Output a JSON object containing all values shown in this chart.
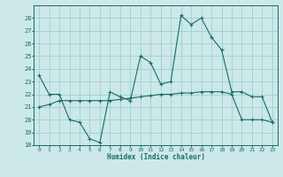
{
  "title": "",
  "xlabel": "Humidex (Indice chaleur)",
  "xlim": [
    -0.5,
    23.5
  ],
  "ylim": [
    18,
    29
  ],
  "yticks": [
    18,
    19,
    20,
    21,
    22,
    23,
    24,
    25,
    26,
    27,
    28
  ],
  "xticks": [
    0,
    1,
    2,
    3,
    4,
    5,
    6,
    7,
    8,
    9,
    10,
    11,
    12,
    13,
    14,
    15,
    16,
    17,
    18,
    19,
    20,
    21,
    22,
    23
  ],
  "bg_color": "#cce8e8",
  "line_color": "#1a6b6b",
  "grid_color": "#99cccc",
  "line1_x": [
    0,
    1,
    2,
    3,
    4,
    5,
    6,
    7,
    8,
    9,
    10,
    11,
    12,
    13,
    14,
    15,
    16,
    17,
    18,
    19,
    20,
    21,
    22,
    23
  ],
  "line1_y": [
    23.5,
    22.0,
    22.0,
    20.0,
    19.8,
    18.5,
    18.2,
    22.2,
    21.8,
    21.5,
    25.0,
    24.5,
    22.8,
    23.0,
    28.2,
    27.5,
    28.0,
    26.5,
    25.5,
    22.2,
    22.2,
    21.8,
    21.8,
    19.8
  ],
  "line2_x": [
    0,
    1,
    2,
    3,
    4,
    5,
    6,
    7,
    8,
    9,
    10,
    11,
    12,
    13,
    14,
    15,
    16,
    17,
    18,
    19,
    20,
    21,
    22,
    23
  ],
  "line2_y": [
    21.0,
    21.2,
    21.5,
    21.5,
    21.5,
    21.5,
    21.5,
    21.5,
    21.6,
    21.7,
    21.8,
    21.9,
    22.0,
    22.0,
    22.1,
    22.1,
    22.2,
    22.2,
    22.2,
    22.0,
    20.0,
    20.0,
    20.0,
    19.8
  ]
}
